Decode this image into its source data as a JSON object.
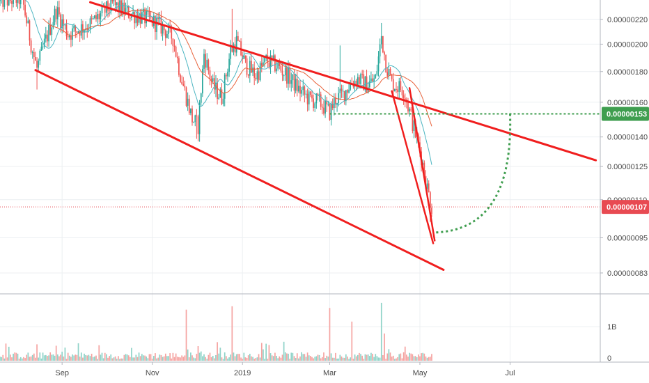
{
  "chart_data": {
    "type": "candlestick",
    "title": "",
    "price_axis": {
      "scale": "log",
      "range": [
        7.7e-07,
        2.37e-06
      ],
      "ticks": [
        "0.00000220",
        "0.00000200",
        "0.00000180",
        "0.00000160",
        "0.00000140",
        "0.00000125",
        "0.00000110",
        "0.00000095",
        "0.00000083"
      ]
    },
    "time_axis": {
      "labels": [
        "Sep",
        "Nov",
        "2019",
        "Mar",
        "May",
        "Jul"
      ],
      "dates": [
        "2018-09-01",
        "2018-11-01",
        "2019-01-01",
        "2019-03-01",
        "2019-05-01",
        "2019-07-01"
      ],
      "range": [
        "2018-07-21",
        "2019-08-31"
      ]
    },
    "volume_axis": {
      "range": [
        0,
        1800000000
      ],
      "ticks": [
        "1B",
        "0"
      ]
    },
    "price_tags": [
      {
        "value": 1.53e-06,
        "label": "0.00000153",
        "color": "#3f9e4f"
      },
      {
        "value": 1.07e-06,
        "label": "0.00000107",
        "color": "#e84a52"
      }
    ],
    "annotations": {
      "upper_channel": [
        [
          "2018-09-20",
          2.35e-06
        ],
        [
          "2019-08-28",
          1.28e-06
        ]
      ],
      "lower_channel": [
        [
          "2018-08-14",
          1.81e-06
        ],
        [
          "2019-05-17",
          8.4e-07
        ]
      ],
      "falling_wedge_outer": [
        [
          "2019-04-12",
          1.67e-06
        ],
        [
          "2019-05-10",
          9.3e-07
        ]
      ],
      "falling_wedge_inner": [
        [
          "2019-04-24",
          1.69e-06
        ],
        [
          "2019-05-11",
          9.4e-07
        ]
      ],
      "target_level": {
        "value": 1.53e-06,
        "from": "2019-03-01",
        "to": "2019-08-31",
        "color": "#3f9e4f"
      },
      "projection": {
        "from": [
          "2019-05-12",
          9.7e-07
        ],
        "to": [
          "2019-07-01",
          1.53e-06
        ],
        "color": "#3f9e4f"
      },
      "current_price_line": {
        "value": 1.07e-06,
        "color": "#e84a52"
      }
    },
    "indicators": [
      {
        "name": "",
        "color": "#e8623a"
      },
      {
        "name": "",
        "color": "#4bb5c1"
      }
    ],
    "series_colors": {
      "up": "#26a69a",
      "down": "#ef5350",
      "volume_up": "#8fd3c8",
      "volume_down": "#f5a3a1"
    },
    "anchors": [
      [
        "2018-07-21",
        2.36e-06
      ],
      [
        "2018-08-05",
        2.38e-06
      ],
      [
        "2018-08-12",
        1.95e-06
      ],
      [
        "2018-08-15",
        1.82e-06
      ],
      [
        "2018-08-20",
        2e-06
      ],
      [
        "2018-08-28",
        2.28e-06
      ],
      [
        "2018-09-05",
        2.08e-06
      ],
      [
        "2018-09-20",
        2.16e-06
      ],
      [
        "2018-10-05",
        2.33e-06
      ],
      [
        "2018-10-15",
        2.26e-06
      ],
      [
        "2018-10-25",
        2.22e-06
      ],
      [
        "2018-11-05",
        2.16e-06
      ],
      [
        "2018-11-15",
        2.05e-06
      ],
      [
        "2018-11-20",
        1.78e-06
      ],
      [
        "2018-11-28",
        1.5e-06
      ],
      [
        "2018-12-02",
        1.46e-06
      ],
      [
        "2018-12-06",
        1.93e-06
      ],
      [
        "2018-12-12",
        1.7e-06
      ],
      [
        "2018-12-18",
        1.63e-06
      ],
      [
        "2018-12-24",
        1.95e-06
      ],
      [
        "2018-12-28",
        2.02e-06
      ],
      [
        "2019-01-03",
        1.85e-06
      ],
      [
        "2019-01-10",
        1.77e-06
      ],
      [
        "2019-01-17",
        1.88e-06
      ],
      [
        "2019-01-24",
        1.84e-06
      ],
      [
        "2019-02-01",
        1.77e-06
      ],
      [
        "2019-02-08",
        1.68e-06
      ],
      [
        "2019-02-15",
        1.62e-06
      ],
      [
        "2019-02-22",
        1.6e-06
      ],
      [
        "2019-03-01",
        1.54e-06
      ],
      [
        "2019-03-05",
        1.62e-06
      ],
      [
        "2019-03-10",
        1.65e-06
      ],
      [
        "2019-03-15",
        1.72e-06
      ],
      [
        "2019-03-20",
        1.75e-06
      ],
      [
        "2019-03-26",
        1.71e-06
      ],
      [
        "2019-04-01",
        1.75e-06
      ],
      [
        "2019-04-05",
        2.06e-06
      ],
      [
        "2019-04-08",
        1.86e-06
      ],
      [
        "2019-04-12",
        1.72e-06
      ],
      [
        "2019-04-20",
        1.68e-06
      ],
      [
        "2019-04-26",
        1.48e-06
      ],
      [
        "2019-05-02",
        1.3e-06
      ],
      [
        "2019-05-06",
        1.15e-06
      ],
      [
        "2019-05-09",
        1.07e-06
      ]
    ],
    "volume_spikes": [
      [
        "2018-11-24",
        1500000000
      ],
      [
        "2018-12-25",
        1600000000
      ],
      [
        "2019-03-01",
        1550000000
      ],
      [
        "2019-03-16",
        1150000000
      ],
      [
        "2019-04-05",
        1700000000
      ],
      [
        "2019-04-07",
        800000000
      ]
    ]
  }
}
